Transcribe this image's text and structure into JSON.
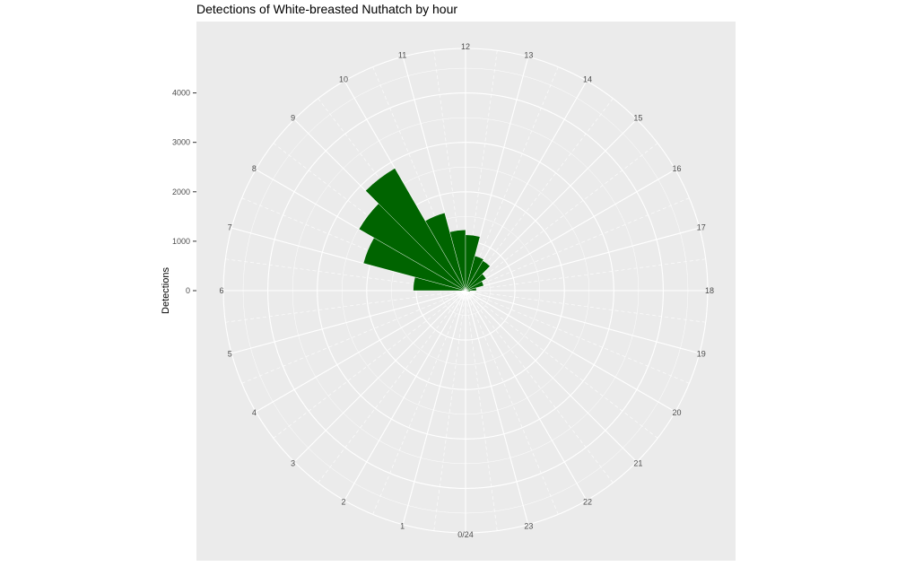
{
  "chart_data": {
    "type": "bar",
    "coord": "polar",
    "title": "Detections of White-breasted Nuthatch by hour",
    "ylabel": "Detections",
    "xlabel": "",
    "hour_labels": [
      "0/24",
      "1",
      "2",
      "3",
      "4",
      "5",
      "6",
      "7",
      "8",
      "9",
      "10",
      "11",
      "12",
      "13",
      "14",
      "15",
      "16",
      "17",
      "18",
      "19",
      "20",
      "21",
      "22",
      "23"
    ],
    "y_ticks": [
      0,
      1000,
      2000,
      3000,
      4000
    ],
    "y_tick_labels": [
      "0",
      "1000",
      "2000",
      "3000",
      "4000"
    ],
    "ylim": [
      0,
      4900
    ],
    "categories": [
      "6",
      "7",
      "8",
      "9",
      "10",
      "11",
      "12",
      "13",
      "14",
      "15",
      "16",
      "17",
      "18",
      "19"
    ],
    "values": [
      1060,
      2140,
      2490,
      2860,
      1630,
      1230,
      1130,
      730,
      700,
      480,
      380,
      220,
      90,
      30
    ],
    "bar_color": "#006400",
    "panel_background": "#ebebeb",
    "grid_color": "#ffffff",
    "grid": true,
    "legend": "none"
  }
}
